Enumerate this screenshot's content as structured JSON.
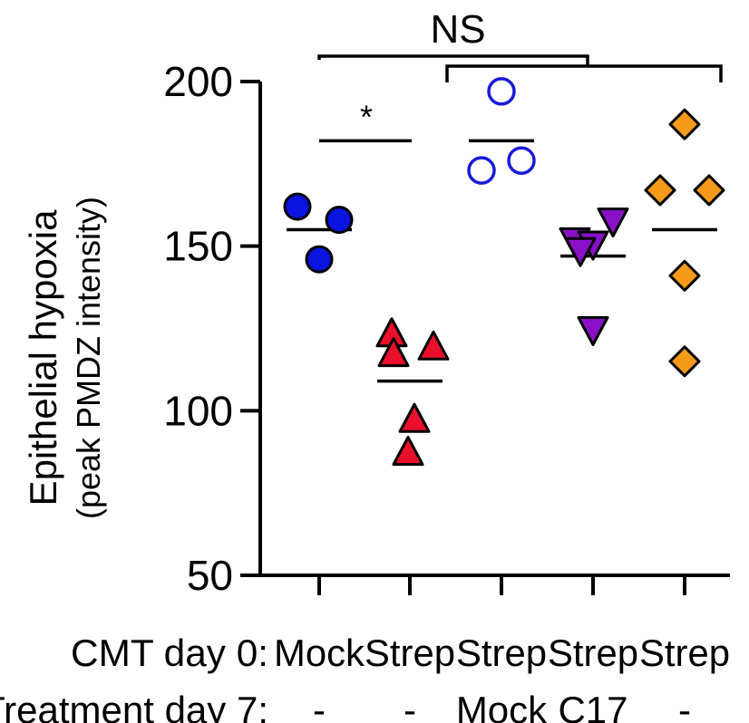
{
  "chart_data": {
    "type": "scatter",
    "ylabel": "Epithelial hypoxia",
    "ylabel_sub": "(peak PMDZ intensity)",
    "ylim": [
      50,
      200
    ],
    "yticks": [
      50,
      100,
      150,
      200
    ],
    "ytick_labels": [
      "50",
      "100",
      "150",
      "200"
    ],
    "row_labels": {
      "cmt": "CMT day 0:",
      "treatment": "Treatment day 7:"
    },
    "groups": [
      {
        "cmt": "Mock",
        "treatment": "-",
        "marker": "circle",
        "fill": "#0a14e0",
        "stroke": "#000000",
        "mean": 155,
        "values": [
          162,
          158,
          146
        ]
      },
      {
        "cmt": "Strep",
        "treatment": "-",
        "marker": "triangle-up",
        "fill": "#e8102a",
        "stroke": "#000000",
        "mean": 109,
        "values": [
          123,
          119,
          117,
          97,
          87
        ]
      },
      {
        "cmt": "Strep",
        "treatment": "Mock",
        "marker": "circle-open",
        "fill": "none",
        "stroke": "#1a1ad8",
        "mean": 182,
        "values": [
          197,
          173,
          176
        ]
      },
      {
        "cmt": "Strep",
        "treatment": "C17",
        "marker": "triangle-down",
        "fill": "#8a10c8",
        "stroke": "#000000",
        "mean": 147,
        "values": [
          152,
          158,
          151,
          149,
          125
        ]
      },
      {
        "cmt": "Strep",
        "treatment": "-",
        "marker": "diamond",
        "fill": "#f59a1a",
        "stroke": "#000000",
        "mean": 155,
        "values": [
          187,
          167,
          167,
          141,
          115
        ]
      }
    ],
    "annotations": [
      {
        "text": "*",
        "type": "bar",
        "from_group": 0,
        "to_group": 1,
        "y": 182
      },
      {
        "text": "NS",
        "type": "nested-bracket",
        "from_group": 0,
        "inner_from": 2,
        "inner_to": 4
      }
    ]
  }
}
